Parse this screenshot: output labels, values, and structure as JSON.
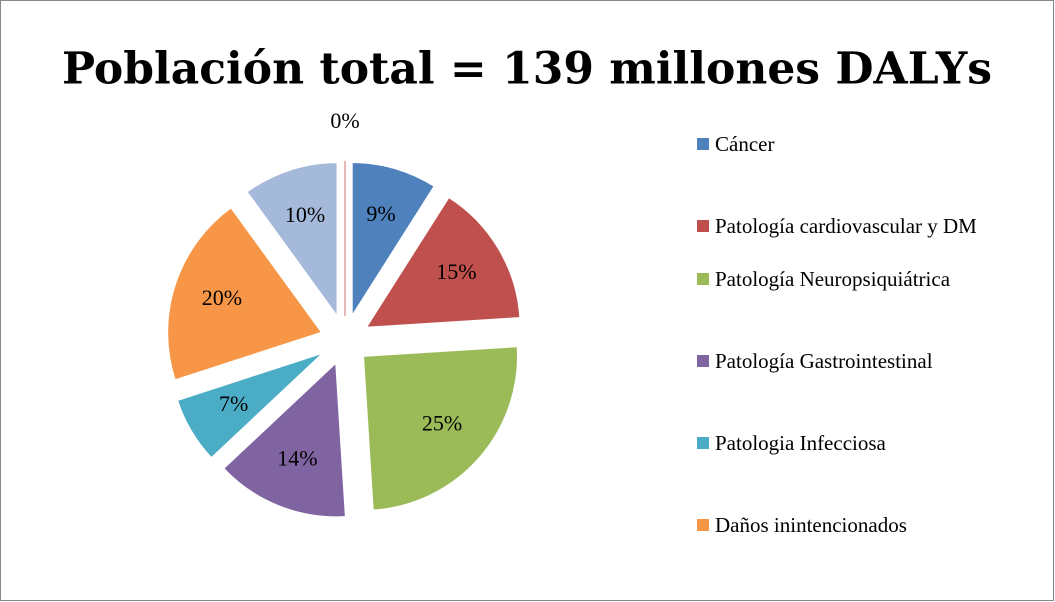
{
  "chart_data": {
    "type": "pie",
    "title": "Población total = 139 millones DALYs",
    "categories": [
      "Cáncer",
      "Patología cardiovascular y DM",
      "Patología Neuropsiquiátrica",
      "Patología Gastrointestinal",
      "Patologia Infecciosa",
      "Daños inintencionados",
      null,
      null
    ],
    "values": [
      9,
      15,
      25,
      14,
      7,
      20,
      10,
      0
    ],
    "value_labels": [
      "9%",
      "15%",
      "25%",
      "14%",
      "7%",
      "20%",
      "10%",
      "0%"
    ],
    "colors": [
      "#4f81bd",
      "#c0504d",
      "#9bbb59",
      "#8064a2",
      "#4bacc6",
      "#f79646",
      "#a5b9db",
      "#e6b9b8"
    ],
    "legend": "right"
  }
}
